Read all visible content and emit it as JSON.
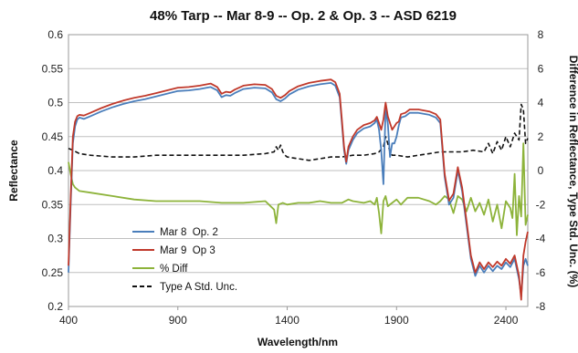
{
  "chart_data": {
    "type": "line",
    "title": "48% Tarp -- Mar 8-9 -- Op. 2 & Op. 3 -- ASD 6219",
    "xlabel": "Wavelength/nm",
    "ylabel": "Reflectance",
    "y2label": "Difference in Reflectance, Type Std. Unc. (%)",
    "xlim": [
      400,
      2500
    ],
    "ylim": [
      0.2,
      0.6
    ],
    "y2lim": [
      -8,
      8
    ],
    "xticks": [
      "400",
      "900",
      "1400",
      "1900",
      "2400"
    ],
    "yticks": [
      "0.6",
      "0.55",
      "0.5",
      "0.45",
      "0.4",
      "0.35",
      "0.3",
      "0.25",
      "0.2"
    ],
    "y2ticks": [
      "8",
      "6",
      "4",
      "2",
      "0",
      "-2",
      "-4",
      "-6",
      "-8"
    ],
    "grid": true,
    "legend_position": "lower-left",
    "series": [
      {
        "name": "Mar 8  Op. 2",
        "axis": "left",
        "color": "#4a7ebb",
        "x": [
          400,
          410,
          420,
          430,
          440,
          450,
          470,
          500,
          550,
          600,
          650,
          700,
          750,
          800,
          850,
          900,
          950,
          1000,
          1050,
          1080,
          1100,
          1120,
          1140,
          1160,
          1200,
          1250,
          1300,
          1330,
          1350,
          1370,
          1390,
          1410,
          1450,
          1500,
          1550,
          1600,
          1620,
          1640,
          1650,
          1660,
          1670,
          1680,
          1700,
          1720,
          1750,
          1780,
          1800,
          1810,
          1820,
          1830,
          1840,
          1850,
          1860,
          1870,
          1880,
          1890,
          1900,
          1910,
          1920,
          1940,
          1960,
          2000,
          2050,
          2080,
          2100,
          2110,
          2120,
          2140,
          2160,
          2180,
          2200,
          2220,
          2240,
          2260,
          2280,
          2300,
          2320,
          2340,
          2360,
          2380,
          2400,
          2420,
          2440,
          2460,
          2470,
          2480,
          2490,
          2500
        ],
        "y": [
          0.25,
          0.35,
          0.44,
          0.465,
          0.475,
          0.478,
          0.476,
          0.48,
          0.487,
          0.493,
          0.498,
          0.502,
          0.505,
          0.509,
          0.513,
          0.517,
          0.518,
          0.52,
          0.523,
          0.518,
          0.508,
          0.511,
          0.51,
          0.514,
          0.52,
          0.522,
          0.521,
          0.515,
          0.505,
          0.502,
          0.506,
          0.512,
          0.519,
          0.524,
          0.527,
          0.529,
          0.525,
          0.508,
          0.47,
          0.43,
          0.41,
          0.43,
          0.445,
          0.455,
          0.462,
          0.465,
          0.47,
          0.475,
          0.46,
          0.43,
          0.38,
          0.49,
          0.47,
          0.42,
          0.44,
          0.44,
          0.45,
          0.466,
          0.478,
          0.48,
          0.485,
          0.485,
          0.482,
          0.478,
          0.47,
          0.43,
          0.39,
          0.35,
          0.36,
          0.4,
          0.37,
          0.32,
          0.27,
          0.245,
          0.26,
          0.25,
          0.26,
          0.252,
          0.26,
          0.255,
          0.265,
          0.258,
          0.27,
          0.24,
          0.215,
          0.26,
          0.27,
          0.26
        ]
      },
      {
        "name": "Mar 9  Op 3",
        "axis": "left",
        "color": "#c0392b",
        "x": [
          400,
          410,
          420,
          430,
          440,
          450,
          470,
          500,
          550,
          600,
          650,
          700,
          750,
          800,
          850,
          900,
          950,
          1000,
          1050,
          1080,
          1100,
          1120,
          1140,
          1160,
          1200,
          1250,
          1300,
          1330,
          1350,
          1370,
          1390,
          1410,
          1450,
          1500,
          1550,
          1600,
          1620,
          1640,
          1650,
          1660,
          1670,
          1680,
          1700,
          1720,
          1750,
          1780,
          1800,
          1810,
          1820,
          1830,
          1840,
          1850,
          1860,
          1870,
          1880,
          1890,
          1900,
          1910,
          1920,
          1940,
          1960,
          2000,
          2050,
          2080,
          2100,
          2110,
          2120,
          2140,
          2160,
          2180,
          2200,
          2220,
          2240,
          2260,
          2280,
          2300,
          2320,
          2340,
          2360,
          2380,
          2400,
          2420,
          2440,
          2460,
          2470,
          2480,
          2490,
          2500
        ],
        "y": [
          0.26,
          0.36,
          0.45,
          0.472,
          0.48,
          0.482,
          0.481,
          0.485,
          0.492,
          0.498,
          0.503,
          0.507,
          0.51,
          0.514,
          0.518,
          0.522,
          0.523,
          0.525,
          0.528,
          0.523,
          0.513,
          0.516,
          0.515,
          0.519,
          0.525,
          0.527,
          0.526,
          0.52,
          0.51,
          0.507,
          0.511,
          0.517,
          0.524,
          0.529,
          0.532,
          0.534,
          0.53,
          0.513,
          0.475,
          0.435,
          0.413,
          0.435,
          0.45,
          0.46,
          0.467,
          0.47,
          0.474,
          0.479,
          0.47,
          0.46,
          0.475,
          0.5,
          0.48,
          0.47,
          0.46,
          0.465,
          0.47,
          0.472,
          0.483,
          0.485,
          0.49,
          0.49,
          0.487,
          0.483,
          0.475,
          0.435,
          0.395,
          0.356,
          0.366,
          0.405,
          0.375,
          0.326,
          0.275,
          0.25,
          0.265,
          0.255,
          0.265,
          0.258,
          0.266,
          0.26,
          0.27,
          0.263,
          0.275,
          0.245,
          0.21,
          0.275,
          0.295,
          0.31
        ]
      },
      {
        "name": "% Diff",
        "axis": "right",
        "color": "#8db33a",
        "x": [
          400,
          410,
          420,
          430,
          450,
          500,
          600,
          700,
          800,
          900,
          1000,
          1100,
          1200,
          1300,
          1340,
          1350,
          1360,
          1380,
          1400,
          1450,
          1500,
          1550,
          1600,
          1650,
          1680,
          1700,
          1750,
          1780,
          1800,
          1810,
          1820,
          1830,
          1840,
          1850,
          1860,
          1880,
          1900,
          1920,
          1950,
          2000,
          2050,
          2080,
          2100,
          2120,
          2140,
          2160,
          2180,
          2200,
          2220,
          2240,
          2260,
          2280,
          2300,
          2320,
          2340,
          2360,
          2380,
          2400,
          2420,
          2430,
          2440,
          2450,
          2460,
          2470,
          2480,
          2490,
          2500
        ],
        "y": [
          0.5,
          -0.2,
          -0.8,
          -1.0,
          -1.2,
          -1.3,
          -1.5,
          -1.7,
          -1.8,
          -1.8,
          -1.8,
          -1.9,
          -1.9,
          -1.8,
          -2.3,
          -3.1,
          -2.0,
          -1.9,
          -2.0,
          -1.9,
          -1.9,
          -1.8,
          -1.9,
          -1.9,
          -1.7,
          -1.8,
          -1.9,
          -1.8,
          -2.0,
          -1.6,
          -2.5,
          -3.7,
          -1.8,
          -1.5,
          -2.1,
          -1.9,
          -1.7,
          -2.0,
          -1.6,
          -1.6,
          -1.8,
          -2.0,
          -1.8,
          -1.5,
          -1.7,
          -2.5,
          -1.5,
          -1.7,
          -2.4,
          -1.6,
          -2.4,
          -1.9,
          -2.6,
          -1.7,
          -3.0,
          -2.0,
          -3.4,
          -1.8,
          -2.2,
          -2.8,
          -0.2,
          -3.8,
          -1.5,
          -2.7,
          1.6,
          -3.2,
          -2.6
        ]
      },
      {
        "name": "Type A Std. Unc.",
        "axis": "right",
        "color": "#111111",
        "dashed": true,
        "x": [
          400,
          420,
          450,
          500,
          600,
          700,
          800,
          900,
          1000,
          1100,
          1200,
          1300,
          1340,
          1350,
          1360,
          1370,
          1380,
          1390,
          1400,
          1450,
          1500,
          1550,
          1600,
          1650,
          1700,
          1750,
          1800,
          1820,
          1840,
          1850,
          1860,
          1870,
          1880,
          1900,
          1950,
          2000,
          2050,
          2100,
          2150,
          2200,
          2250,
          2300,
          2320,
          2340,
          2360,
          2380,
          2400,
          2420,
          2440,
          2460,
          2470,
          2480,
          2490,
          2500
        ],
        "y": [
          1.3,
          1.2,
          1.0,
          0.9,
          0.8,
          0.8,
          0.9,
          0.9,
          0.9,
          0.9,
          0.9,
          1.0,
          1.1,
          1.4,
          1.2,
          1.5,
          1.1,
          0.9,
          0.8,
          0.7,
          0.6,
          0.7,
          0.8,
          0.8,
          0.9,
          0.9,
          1.0,
          1.1,
          1.4,
          2.0,
          1.6,
          1.1,
          0.9,
          0.9,
          0.8,
          0.9,
          1.0,
          1.1,
          1.1,
          1.1,
          1.2,
          1.1,
          1.6,
          1.0,
          1.7,
          1.2,
          2.0,
          1.4,
          2.2,
          1.8,
          3.9,
          3.6,
          1.6,
          1.9
        ]
      }
    ]
  }
}
